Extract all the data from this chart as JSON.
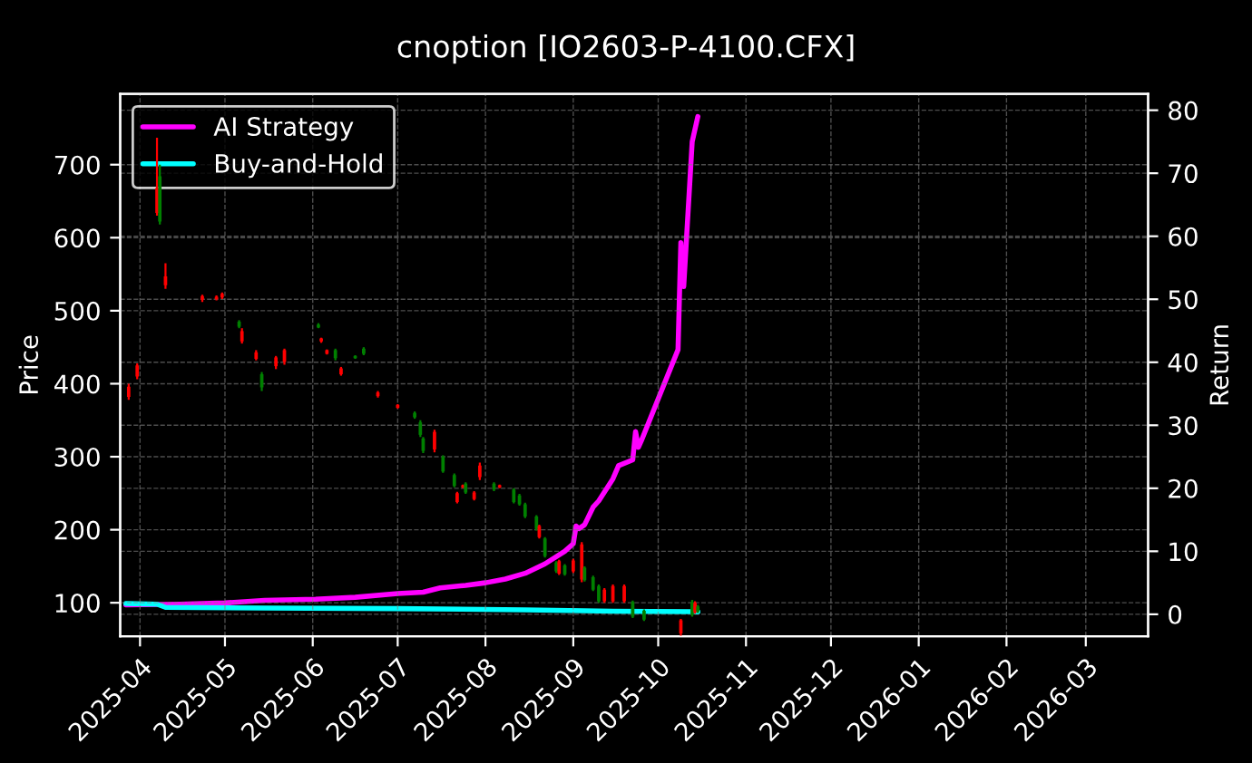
{
  "chart_data": {
    "type": "candlestick",
    "title": "cnoption [IO2603-P-4100.CFX]",
    "ylabel": "Price",
    "y2label": "Return",
    "x": [
      "2025-03-28",
      "2025-03-31",
      "2025-04-07",
      "2025-04-08",
      "2025-04-10",
      "2025-04-23",
      "2025-04-28",
      "2025-04-30",
      "2025-05-06",
      "2025-05-07",
      "2025-05-12",
      "2025-05-14",
      "2025-05-19",
      "2025-05-22",
      "2025-06-03",
      "2025-06-04",
      "2025-06-06",
      "2025-06-09",
      "2025-06-11",
      "2025-06-16",
      "2025-06-19",
      "2025-06-24",
      "2025-07-01",
      "2025-07-07",
      "2025-07-09",
      "2025-07-10",
      "2025-07-14",
      "2025-07-17",
      "2025-07-21",
      "2025-07-22",
      "2025-07-24",
      "2025-07-25",
      "2025-07-28",
      "2025-07-30",
      "2025-08-04",
      "2025-08-06",
      "2025-08-11",
      "2025-08-13",
      "2025-08-15",
      "2025-08-19",
      "2025-08-20",
      "2025-08-22",
      "2025-08-26",
      "2025-08-27",
      "2025-08-29",
      "2025-09-01",
      "2025-09-04",
      "2025-09-05",
      "2025-09-08",
      "2025-09-10",
      "2025-09-12",
      "2025-09-15",
      "2025-09-19",
      "2025-09-22",
      "2025-09-26",
      "2025-10-09",
      "2025-10-13",
      "2025-10-14",
      "2025-10-15"
    ],
    "ohlc": [
      [
        382,
        400,
        378,
        396
      ],
      [
        410,
        428,
        406,
        425
      ],
      [
        634,
        737,
        630,
        668
      ],
      [
        684,
        700,
        618,
        622
      ],
      [
        535,
        565,
        530,
        547
      ],
      [
        515,
        522,
        512,
        520
      ],
      [
        516,
        521,
        514,
        519
      ],
      [
        518,
        525,
        516,
        523
      ],
      [
        485,
        487,
        476,
        478
      ],
      [
        458,
        476,
        455,
        472
      ],
      [
        434,
        446,
        432,
        443
      ],
      [
        413,
        416,
        390,
        395
      ],
      [
        424,
        438,
        420,
        436
      ],
      [
        430,
        448,
        426,
        446
      ],
      [
        481,
        483,
        476,
        477
      ],
      [
        458,
        463,
        456,
        462
      ],
      [
        441,
        447,
        440,
        446
      ],
      [
        446,
        448,
        432,
        435
      ],
      [
        413,
        423,
        411,
        421
      ],
      [
        438,
        439,
        434,
        435
      ],
      [
        448,
        450,
        439,
        441
      ],
      [
        383,
        390,
        381,
        388
      ],
      [
        367,
        372,
        366,
        371
      ],
      [
        360,
        362,
        352,
        354
      ],
      [
        347,
        350,
        327,
        330
      ],
      [
        325,
        327,
        305,
        308
      ],
      [
        310,
        337,
        306,
        334
      ],
      [
        300,
        302,
        278,
        280
      ],
      [
        275,
        277,
        258,
        260
      ],
      [
        238,
        252,
        236,
        250
      ],
      [
        258,
        262,
        257,
        261
      ],
      [
        263,
        265,
        249,
        251
      ],
      [
        242,
        253,
        240,
        251
      ],
      [
        272,
        292,
        268,
        288
      ],
      [
        263,
        265,
        253,
        255
      ],
      [
        258,
        262,
        257,
        261
      ],
      [
        255,
        257,
        236,
        238
      ],
      [
        247,
        249,
        233,
        235
      ],
      [
        235,
        237,
        216,
        218
      ],
      [
        218,
        220,
        199,
        201
      ],
      [
        190,
        207,
        188,
        205
      ],
      [
        188,
        190,
        162,
        164
      ],
      [
        155,
        157,
        141,
        143
      ],
      [
        140,
        159,
        138,
        157
      ],
      [
        151,
        153,
        137,
        139
      ],
      [
        143,
        160,
        141,
        158
      ],
      [
        132,
        183,
        128,
        180
      ],
      [
        148,
        150,
        129,
        131
      ],
      [
        135,
        137,
        116,
        118
      ],
      [
        123,
        125,
        100,
        102
      ],
      [
        102,
        120,
        100,
        118
      ],
      [
        102,
        125,
        100,
        123
      ],
      [
        102,
        125,
        100,
        123
      ],
      [
        101,
        103,
        79,
        81
      ],
      [
        89,
        91,
        75,
        77
      ],
      [
        58,
        78,
        55,
        76
      ],
      [
        101,
        104,
        81,
        83
      ],
      [
        87,
        102,
        85,
        100
      ],
      [
        95,
        97,
        86,
        88
      ]
    ],
    "colors": [
      "#ff0000",
      "#ff0000",
      "#ff0000",
      "#008000",
      "#ff0000",
      "#ff0000",
      "#ff0000",
      "#ff0000",
      "#008000",
      "#ff0000",
      "#ff0000",
      "#008000",
      "#ff0000",
      "#ff0000",
      "#008000",
      "#ff0000",
      "#ff0000",
      "#008000",
      "#ff0000",
      "#008000",
      "#008000",
      "#ff0000",
      "#ff0000",
      "#008000",
      "#008000",
      "#008000",
      "#ff0000",
      "#008000",
      "#008000",
      "#ff0000",
      "#ff0000",
      "#008000",
      "#ff0000",
      "#ff0000",
      "#008000",
      "#ff0000",
      "#008000",
      "#008000",
      "#008000",
      "#008000",
      "#ff0000",
      "#008000",
      "#008000",
      "#ff0000",
      "#008000",
      "#ff0000",
      "#ff0000",
      "#008000",
      "#008000",
      "#008000",
      "#ff0000",
      "#ff0000",
      "#ff0000",
      "#008000",
      "#008000",
      "#ff0000",
      "#008000",
      "#ff0000",
      "#008000"
    ],
    "series": [
      {
        "name": "AI Strategy",
        "type": "line",
        "axis": "y2",
        "color": "#ff00ff",
        "x": [
          "2025-03-27",
          "2025-04-15",
          "2025-05-01",
          "2025-05-15",
          "2025-06-02",
          "2025-06-16",
          "2025-07-01",
          "2025-07-10",
          "2025-07-16",
          "2025-07-25",
          "2025-08-01",
          "2025-08-08",
          "2025-08-15",
          "2025-08-22",
          "2025-08-29",
          "2025-09-01",
          "2025-09-02",
          "2025-09-03",
          "2025-09-05",
          "2025-09-08",
          "2025-09-10",
          "2025-09-15",
          "2025-09-17",
          "2025-09-22",
          "2025-09-23",
          "2025-09-24",
          "2025-09-25",
          "2025-10-08",
          "2025-10-09",
          "2025-10-10",
          "2025-10-13",
          "2025-10-15"
        ],
        "values": [
          1.5,
          1.6,
          1.8,
          2.2,
          2.4,
          2.7,
          3.3,
          3.5,
          4.2,
          4.6,
          5.0,
          5.6,
          6.5,
          8.0,
          10.0,
          11.2,
          14.0,
          13.6,
          14.2,
          17.0,
          18.0,
          21.5,
          23.6,
          24.5,
          29.0,
          26.5,
          27.5,
          42.0,
          59.0,
          52.0,
          75.0,
          79.0
        ]
      },
      {
        "name": "Buy-and-Hold",
        "type": "line",
        "axis": "y2",
        "color": "#00ffff",
        "x": [
          "2025-03-27",
          "2025-04-07",
          "2025-04-10",
          "2025-05-15",
          "2025-07-01",
          "2025-08-15",
          "2025-09-15",
          "2025-10-15"
        ],
        "values": [
          1.7,
          1.6,
          1.1,
          1.0,
          0.9,
          0.7,
          0.5,
          0.4
        ]
      }
    ],
    "xlim": [
      "2025-03-25",
      "2026-03-23"
    ],
    "xticks": [
      {
        "value": "2025-04-01",
        "label": "2025-04"
      },
      {
        "value": "2025-05-01",
        "label": "2025-05"
      },
      {
        "value": "2025-06-01",
        "label": "2025-06"
      },
      {
        "value": "2025-07-01",
        "label": "2025-07"
      },
      {
        "value": "2025-08-01",
        "label": "2025-08"
      },
      {
        "value": "2025-09-01",
        "label": "2025-09"
      },
      {
        "value": "2025-10-01",
        "label": "2025-10"
      },
      {
        "value": "2025-11-01",
        "label": "2025-11"
      },
      {
        "value": "2025-12-01",
        "label": "2025-12"
      },
      {
        "value": "2026-01-01",
        "label": "2026-01"
      },
      {
        "value": "2026-02-01",
        "label": "2026-02"
      },
      {
        "value": "2026-03-01",
        "label": "2026-03"
      }
    ],
    "ylim": [
      54,
      797
    ],
    "yticks": [
      100,
      200,
      300,
      400,
      500,
      600,
      700
    ],
    "y2lim": [
      -3.5,
      82.6
    ],
    "y2ticks": [
      0,
      10,
      20,
      30,
      40,
      50,
      60,
      70,
      80
    ],
    "grid": true,
    "legend": "top left",
    "line_style": "solid",
    "marker": "none"
  }
}
